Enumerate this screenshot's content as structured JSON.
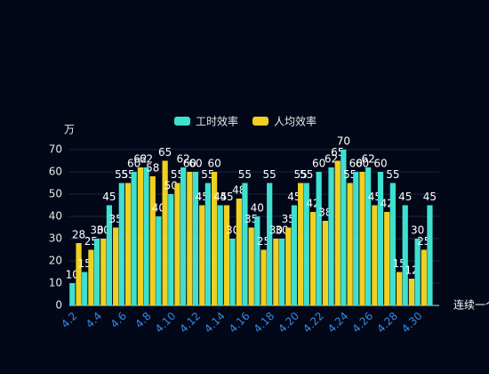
{
  "chart_data": {
    "type": "bar",
    "legend": "top",
    "y_label": "万",
    "x_label": "连续一个",
    "categories": [
      "4.2",
      null,
      "4.4",
      null,
      "4.6",
      null,
      "4.8",
      null,
      "4.10",
      null,
      "4.12",
      null,
      "4.14",
      null,
      "4.16",
      null,
      "4.18",
      null,
      "4.20",
      null,
      "4.22",
      null,
      "4.24",
      null,
      "4.26",
      null,
      "4.28",
      null,
      "4.30",
      null
    ],
    "series": [
      {
        "name": "工时效率",
        "color": "#3ee0d0",
        "values": [
          10,
          15,
          30,
          45,
          55,
          60,
          62,
          40,
          50,
          62,
          60,
          55,
          45,
          30,
          55,
          40,
          55,
          30,
          45,
          55,
          60,
          62,
          70,
          60,
          62,
          60,
          55,
          45,
          30,
          45
        ]
      },
      {
        "name": "人均效率",
        "color": "#f0d020",
        "values": [
          28,
          25,
          30,
          35,
          55,
          62,
          58,
          65,
          55,
          60,
          45,
          60,
          45,
          48,
          35,
          25,
          30,
          35,
          55,
          42,
          38,
          65,
          55,
          60,
          45,
          42,
          15,
          12,
          25,
          null
        ]
      }
    ],
    "ylim": [
      0,
      70
    ],
    "yticks": [
      0,
      10,
      20,
      30,
      40,
      50,
      60,
      70
    ],
    "grid": true
  }
}
